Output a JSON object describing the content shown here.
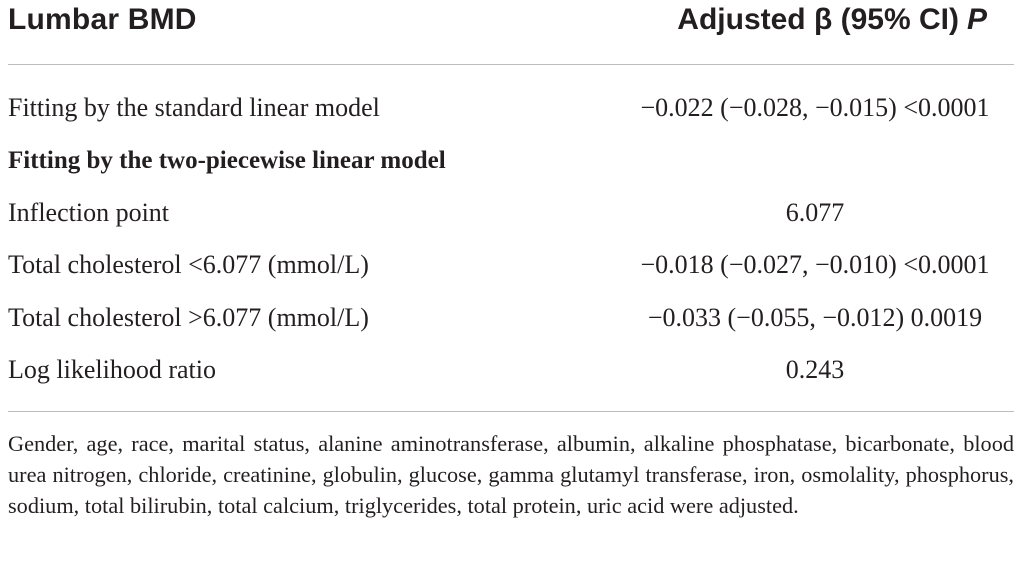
{
  "header": {
    "left": "Lumbar BMD",
    "right_main": "Adjusted β (95% CI)",
    "right_p": "P"
  },
  "rows": [
    {
      "label": "Fitting by the standard linear model",
      "value": "−0.022 (−0.028, −0.015) <0.0001",
      "bold": false
    },
    {
      "label": "Fitting by the two-piecewise linear model",
      "value": "",
      "bold": true
    },
    {
      "label": "Inflection point",
      "value": "6.077",
      "bold": false
    },
    {
      "label": "Total cholesterol <6.077 (mmol/L)",
      "value": "−0.018 (−0.027, −0.010) <0.0001",
      "bold": false
    },
    {
      "label": "Total cholesterol >6.077 (mmol/L)",
      "value": "−0.033 (−0.055, −0.012) 0.0019",
      "bold": false
    },
    {
      "label": "Log likelihood ratio",
      "value": "0.243",
      "bold": false
    }
  ],
  "footnote": "Gender, age, race, marital status, alanine aminotransferase, albumin, alkaline phosphatase, bicarbonate, blood urea nitrogen, chloride, creatinine, globulin, glucose, gamma glutamyl transferase, iron, osmolality, phosphorus, sodium, total bilirubin, total calcium, triglycerides, total protein, uric acid were adjusted."
}
